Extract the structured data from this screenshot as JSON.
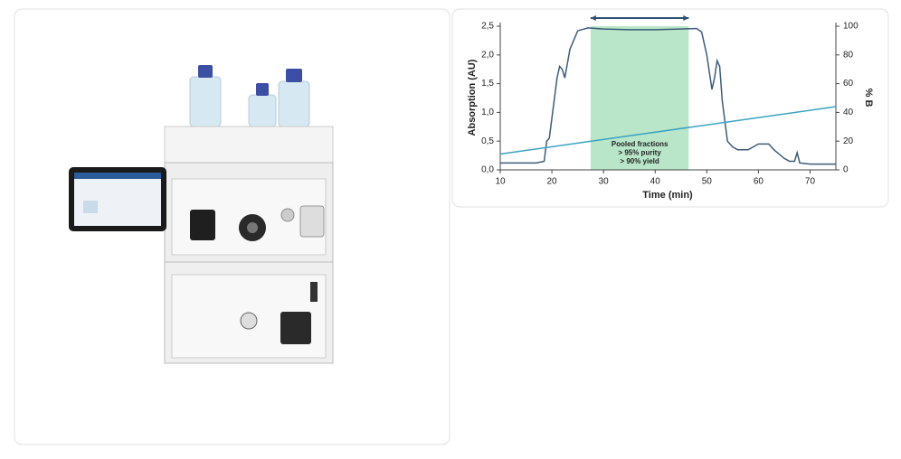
{
  "chart_data": {
    "type": "line",
    "xlabel": "Time (min)",
    "ylabel": "Absorption (AU)",
    "y2label": "% B",
    "xlim": [
      10,
      75
    ],
    "xticks": [
      10,
      20,
      30,
      40,
      50,
      60,
      70
    ],
    "ylim": [
      0,
      2.5
    ],
    "yticks": [
      {
        "value": 0,
        "label": "0,0"
      },
      {
        "value": 0.5,
        "label": "0,5"
      },
      {
        "value": 1,
        "label": "1,0"
      },
      {
        "value": 1.5,
        "label": "1,5"
      },
      {
        "value": 2,
        "label": "2,0"
      },
      {
        "value": 2.5,
        "label": "2,5"
      }
    ],
    "y2lim": [
      0,
      100
    ],
    "y2ticks": [
      0,
      20,
      40,
      60,
      80,
      100
    ],
    "highlight": {
      "x": [
        27.5,
        46.5
      ],
      "color": "#b9e6c9",
      "lines": [
        "Pooled fractions",
        "> 95%  purity",
        "> 90%  yield"
      ]
    },
    "series": [
      {
        "color": "#3d5c78",
        "x": [
          10,
          17,
          18.5,
          19,
          19.5,
          20,
          21,
          21.5,
          22,
          22.5,
          23.5,
          25,
          27,
          30,
          35,
          40,
          45,
          48,
          49,
          50,
          50.5,
          51,
          51.5,
          52,
          52.5,
          53,
          54,
          55,
          56,
          58,
          60,
          62,
          63,
          65,
          66,
          67,
          67.5,
          68,
          70,
          75
        ],
        "values": [
          0.12,
          0.12,
          0.15,
          0.5,
          0.55,
          0.9,
          1.6,
          1.8,
          1.75,
          1.6,
          2.1,
          2.42,
          2.47,
          2.45,
          2.44,
          2.44,
          2.45,
          2.46,
          2.4,
          2.0,
          1.7,
          1.4,
          1.6,
          1.9,
          1.8,
          1.2,
          0.5,
          0.4,
          0.35,
          0.35,
          0.45,
          0.45,
          0.35,
          0.2,
          0.15,
          0.15,
          0.3,
          0.12,
          0.1,
          0.1
        ]
      },
      {
        "color": "#3aa3c2",
        "axis": "y2",
        "x": [
          10,
          75
        ],
        "values": [
          11,
          44
        ]
      }
    ]
  }
}
